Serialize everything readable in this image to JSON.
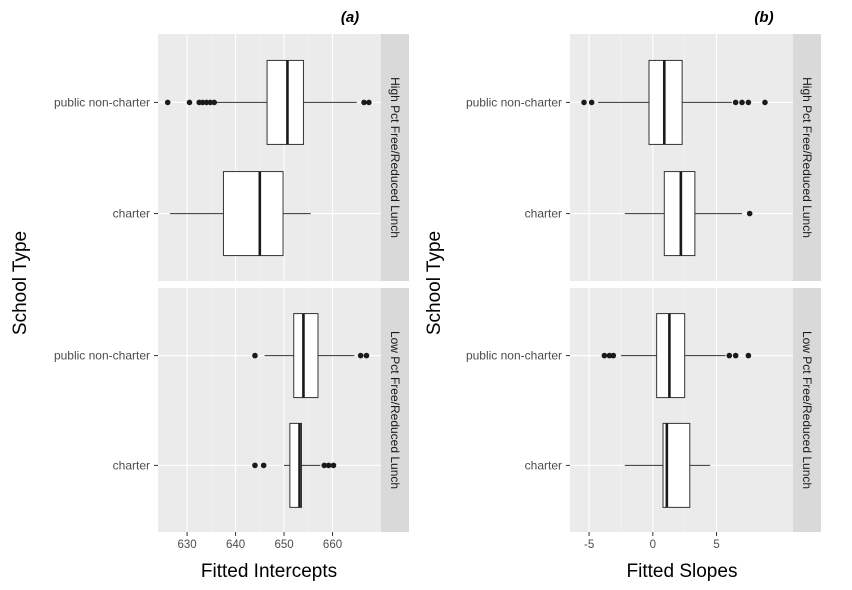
{
  "chart_data": [
    {
      "type": "boxplot",
      "title": "(a)",
      "xlabel": "Fitted Intercepts",
      "ylabel": "School Type",
      "xlim": [
        624,
        670
      ],
      "xticks": [
        630,
        640,
        650,
        660
      ],
      "categories": [
        "public non-charter",
        "charter"
      ],
      "facets": [
        {
          "label": "High Pct Free/Reduced Lunch",
          "boxes": [
            {
              "category": "public non-charter",
              "whisker_low": 636,
              "q1": 646.5,
              "median": 650.7,
              "q3": 654,
              "whisker_high": 665,
              "outliers": [
                626,
                630.5,
                632.5,
                633.2,
                634,
                634.8,
                635.6,
                666.5,
                667.5
              ]
            },
            {
              "category": "charter",
              "whisker_low": 626.5,
              "q1": 637.5,
              "median": 645,
              "q3": 649.8,
              "whisker_high": 655.5,
              "outliers": []
            }
          ]
        },
        {
          "label": "Low Pct Free/Reduced Lunch",
          "boxes": [
            {
              "category": "public non-charter",
              "whisker_low": 646,
              "q1": 652,
              "median": 654,
              "q3": 657,
              "whisker_high": 664.5,
              "outliers": [
                644,
                665.8,
                667
              ]
            },
            {
              "category": "charter",
              "whisker_low": 650,
              "q1": 651.2,
              "median": 653.2,
              "q3": 653.6,
              "whisker_high": 657.5,
              "outliers": [
                644,
                645.8,
                658.3,
                659.2,
                660.2
              ]
            }
          ]
        }
      ]
    },
    {
      "type": "boxplot",
      "title": "(b)",
      "xlabel": "Fitted Slopes",
      "ylabel": "School Type",
      "xlim": [
        -6.5,
        11
      ],
      "xticks": [
        -5,
        0,
        5
      ],
      "categories": [
        "public non-charter",
        "charter"
      ],
      "facets": [
        {
          "label": "High Pct Free/Reduced Lunch",
          "boxes": [
            {
              "category": "public non-charter",
              "whisker_low": -4.3,
              "q1": -0.3,
              "median": 0.9,
              "q3": 2.3,
              "whisker_high": 6.2,
              "outliers": [
                -5.4,
                -4.8,
                6.5,
                7.0,
                7.5,
                8.8
              ]
            },
            {
              "category": "charter",
              "whisker_low": -2.2,
              "q1": 0.9,
              "median": 2.2,
              "q3": 3.3,
              "whisker_high": 7.0,
              "outliers": [
                7.6
              ]
            }
          ]
        },
        {
          "label": "Low Pct Free/Reduced Lunch",
          "boxes": [
            {
              "category": "public non-charter",
              "whisker_low": -2.5,
              "q1": 0.3,
              "median": 1.3,
              "q3": 2.5,
              "whisker_high": 5.7,
              "outliers": [
                -3.8,
                -3.4,
                -3.1,
                6.0,
                6.5,
                7.5
              ]
            },
            {
              "category": "charter",
              "whisker_low": -2.2,
              "q1": 0.8,
              "median": 1.1,
              "q3": 2.9,
              "whisker_high": 4.5,
              "outliers": []
            }
          ]
        }
      ]
    }
  ]
}
